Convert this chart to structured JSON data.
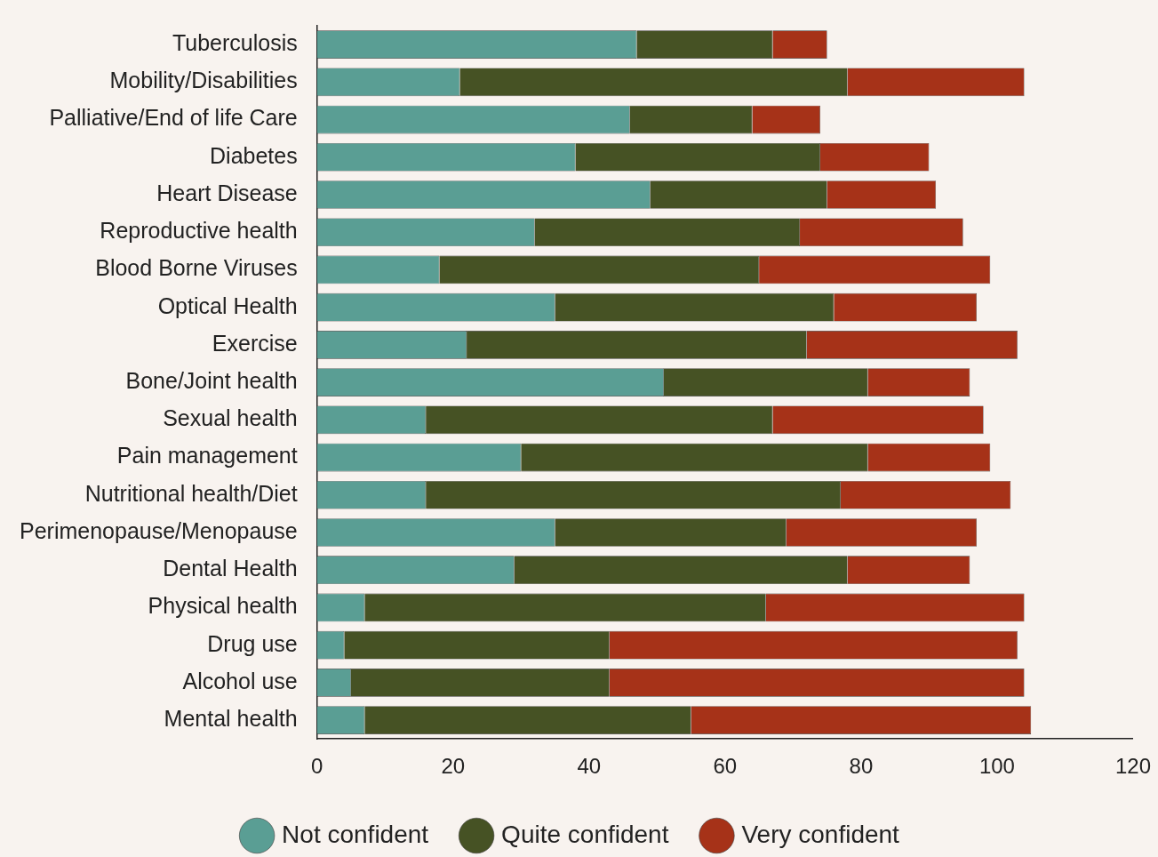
{
  "chart_data": {
    "type": "bar",
    "orientation": "horizontal",
    "stacked": true,
    "categories": [
      "Tuberculosis",
      "Mobility/Disabilities",
      "Palliative/End of life Care",
      "Diabetes",
      "Heart Disease",
      "Reproductive health",
      "Blood Borne Viruses",
      "Optical Health",
      "Exercise",
      "Bone/Joint health",
      "Sexual health",
      "Pain management",
      "Nutritional health/Diet",
      "Perimenopause/Menopause",
      "Dental Health",
      "Physical health",
      "Drug use",
      "Alcohol use",
      "Mental health"
    ],
    "series": [
      {
        "name": "Not confident",
        "color": "#5a9e94",
        "values": [
          47,
          21,
          46,
          38,
          49,
          32,
          18,
          35,
          22,
          51,
          16,
          30,
          16,
          35,
          29,
          7,
          4,
          5,
          7
        ]
      },
      {
        "name": "Quite confident",
        "color": "#465224",
        "values": [
          20,
          57,
          18,
          36,
          26,
          39,
          47,
          41,
          50,
          30,
          51,
          51,
          61,
          34,
          49,
          59,
          39,
          38,
          48
        ]
      },
      {
        "name": "Very confident",
        "color": "#a63218",
        "values": [
          8,
          26,
          10,
          16,
          16,
          24,
          34,
          21,
          31,
          15,
          31,
          18,
          25,
          28,
          18,
          38,
          60,
          61,
          50
        ]
      }
    ],
    "xlim": [
      0,
      120
    ],
    "xticks": [
      0,
      20,
      40,
      60,
      80,
      100,
      120
    ],
    "grid": false,
    "legend": "bottom"
  }
}
